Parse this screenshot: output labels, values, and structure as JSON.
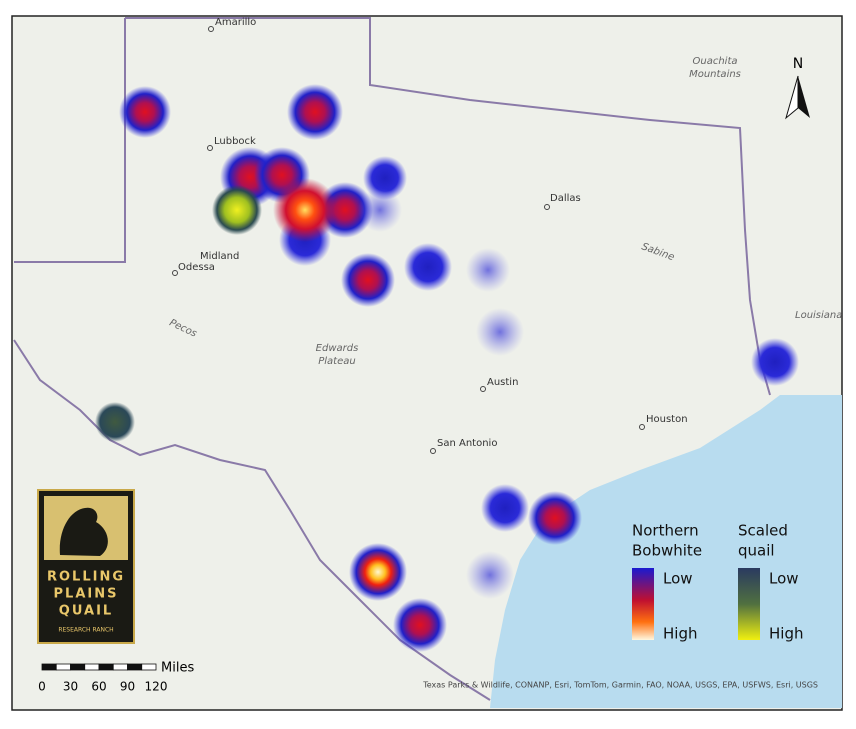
{
  "north": "N",
  "places": [
    {
      "label": "Amarillo"
    },
    {
      "label": "Lubbock"
    },
    {
      "label": "Midland"
    },
    {
      "label": "Odessa"
    },
    {
      "label": "Dallas"
    },
    {
      "label": "Austin"
    },
    {
      "label": "San Antonio"
    },
    {
      "label": "Houston"
    }
  ],
  "regions": [
    {
      "lines": [
        "Ouachita",
        "Mountains"
      ]
    },
    {
      "lines": [
        "Edwards",
        "Plateau"
      ]
    },
    {
      "lines": [
        "Louisiana"
      ]
    },
    {
      "lines": [
        "Pecos"
      ]
    },
    {
      "lines": [
        "Sabine"
      ]
    }
  ],
  "legend": [
    {
      "title": [
        "Northern",
        "Bobwhite"
      ],
      "low": "Low",
      "high": "High"
    },
    {
      "title": [
        "Scaled",
        "quail"
      ],
      "low": "Low",
      "high": "High"
    }
  ],
  "logo": {
    "lines": [
      "ROLLING",
      "PLAINS",
      "QUAIL",
      "RESEARCH RANCH"
    ]
  },
  "scale_bar": {
    "unit": "Miles",
    "ticks": [
      0,
      30,
      60,
      90,
      120
    ]
  },
  "attribution": "Texas Parks & Wildlife, CONANP, Esri, TomTom, Garmin, FAO, NOAA, USGS, EPA, USFWS, Esri, USGS"
}
